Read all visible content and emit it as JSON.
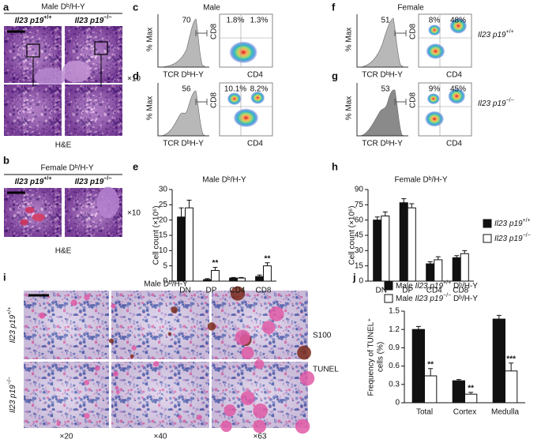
{
  "panels": {
    "a": {
      "letter": "a",
      "title": "Male Dᵇ/H-Y",
      "genotypes": [
        [
          {
            "t": "Il23 p19",
            "i": 1
          },
          {
            "t": "+/+",
            "s": 1
          }
        ],
        [
          {
            "t": "Il23 p19",
            "i": 1
          },
          {
            "t": "−/−",
            "s": 1
          }
        ]
      ],
      "magnification": "×10",
      "stain": "H&E"
    },
    "b": {
      "letter": "b",
      "title": "Female Dᵇ/H-Y",
      "genotypes": [
        [
          {
            "t": "Il23 p19",
            "i": 1
          },
          {
            "t": "+/+",
            "s": 1
          }
        ],
        [
          {
            "t": "Il23 p19",
            "i": 1
          },
          {
            "t": "−/−",
            "s": 1
          }
        ]
      ],
      "magnification": "×10",
      "stain": "H&E"
    },
    "c": {
      "letter": "c",
      "heading": "Male",
      "hist_value": 70,
      "quadrants": [
        "1.8%",
        "1.3%"
      ],
      "x_label": "TCR DᵇH-Y",
      "y_label": "% Max",
      "flow_x": "CD4",
      "flow_y": "CD8"
    },
    "d": {
      "letter": "d",
      "hist_value": 56,
      "quadrants": [
        "10.1%",
        "8.2%"
      ],
      "x_label": "TCR DᵇH-Y",
      "y_label": "% Max",
      "flow_x": "CD4",
      "flow_y": "CD8"
    },
    "f": {
      "letter": "f",
      "heading": "Female",
      "hist_value": 51,
      "quadrants": [
        "8%",
        "48%"
      ],
      "x_label": "TCR DᵇH-Y",
      "y_label": "% Max",
      "flow_x": "CD4",
      "flow_y": "CD8",
      "genotype": [
        {
          "t": "Il23 p19",
          "i": 1
        },
        {
          "t": "+/+",
          "s": 1
        }
      ]
    },
    "g": {
      "letter": "g",
      "hist_value": 53,
      "quadrants": [
        "9%",
        "45%"
      ],
      "x_label": "TCR DᵇH-Y",
      "y_label": "% Max",
      "flow_x": "CD4",
      "flow_y": "CD8",
      "genotype": [
        {
          "t": "Il23 p19",
          "i": 1
        },
        {
          "t": "−/−",
          "s": 1
        }
      ]
    },
    "i": {
      "letter": "i",
      "title": "Male Dᵇ/H-Y",
      "rows": [
        [
          {
            "t": "Il23 p19",
            "i": 1
          },
          {
            "t": "+/+",
            "s": 1
          }
        ],
        [
          {
            "t": "Il23 p19",
            "i": 1
          },
          {
            "t": "−/−",
            "s": 1
          }
        ]
      ],
      "magnifications": [
        "×20",
        "×40",
        "×63"
      ],
      "stains": [
        "S100",
        "TUNEL"
      ]
    }
  },
  "chart_data": [
    {
      "type": "bar",
      "letter": "e",
      "title": "Male Dᵇ/H-Y",
      "y_label": [
        "Cell count (×10⁶)"
      ],
      "categories": [
        "DN",
        "DP",
        "CD4",
        "CD8"
      ],
      "ylim": [
        0,
        30
      ],
      "yticks": [
        0,
        5,
        10,
        15,
        20,
        25,
        30
      ],
      "series": [
        {
          "color": "#111111",
          "values": [
            21,
            0.5,
            1,
            1.5
          ],
          "errors": [
            3,
            0.3,
            0.2,
            0.5
          ]
        },
        {
          "color": "#ffffff",
          "values": [
            24,
            3.5,
            1,
            5
          ],
          "errors": [
            2.5,
            1,
            0.2,
            1
          ],
          "annotations": [
            null,
            "**",
            null,
            "**"
          ]
        }
      ]
    },
    {
      "type": "bar",
      "letter": "h",
      "title": "Female Dᵇ/H-Y",
      "y_label": [
        "Cell count (×10⁶)"
      ],
      "categories": [
        "DN",
        "DP",
        "CD4",
        "CD8"
      ],
      "ylim": [
        0,
        90
      ],
      "yticks": [
        0,
        15,
        30,
        45,
        60,
        75,
        90
      ],
      "legend": "right",
      "series": [
        {
          "name": [
            {
              "t": "Il23 p19",
              "i": 1
            },
            {
              "t": "+/+",
              "s": 1
            }
          ],
          "color": "#111111",
          "values": [
            60,
            77,
            17,
            23
          ],
          "errors": [
            3,
            4,
            2,
            2
          ]
        },
        {
          "name": [
            {
              "t": "Il23 p19",
              "i": 1
            },
            {
              "t": "−/−",
              "s": 1
            }
          ],
          "color": "#ffffff",
          "values": [
            64,
            72,
            21,
            27
          ],
          "errors": [
            4,
            4,
            3,
            3
          ]
        }
      ]
    },
    {
      "type": "bar",
      "letter": "j",
      "y_label": [
        "Frequency of TUNEL⁺",
        "cells (%)"
      ],
      "categories": [
        "Total",
        "Cortex",
        "Medulla"
      ],
      "ylim": [
        0,
        1.5
      ],
      "yticks": [
        0,
        0.3,
        0.6,
        0.9,
        1.2,
        1.5
      ],
      "legend": "top",
      "series": [
        {
          "name": [
            {
              "t": "Male "
            },
            {
              "t": "Il23 p19",
              "i": 1
            },
            {
              "t": "+/+",
              "s": 1
            },
            {
              "t": " Dᵇ/H-Y"
            }
          ],
          "color": "#111111",
          "values": [
            1.2,
            0.36,
            1.37
          ],
          "errors": [
            0.05,
            0.02,
            0.06
          ]
        },
        {
          "name": [
            {
              "t": "Male "
            },
            {
              "t": "Il23 p19",
              "i": 1
            },
            {
              "t": "−/−",
              "s": 1
            },
            {
              "t": " Dᵇ/H-Y"
            }
          ],
          "color": "#ffffff",
          "values": [
            0.44,
            0.14,
            0.52
          ],
          "errors": [
            0.12,
            0.03,
            0.13
          ],
          "annotations": [
            "**",
            "**",
            "***"
          ]
        }
      ]
    }
  ]
}
